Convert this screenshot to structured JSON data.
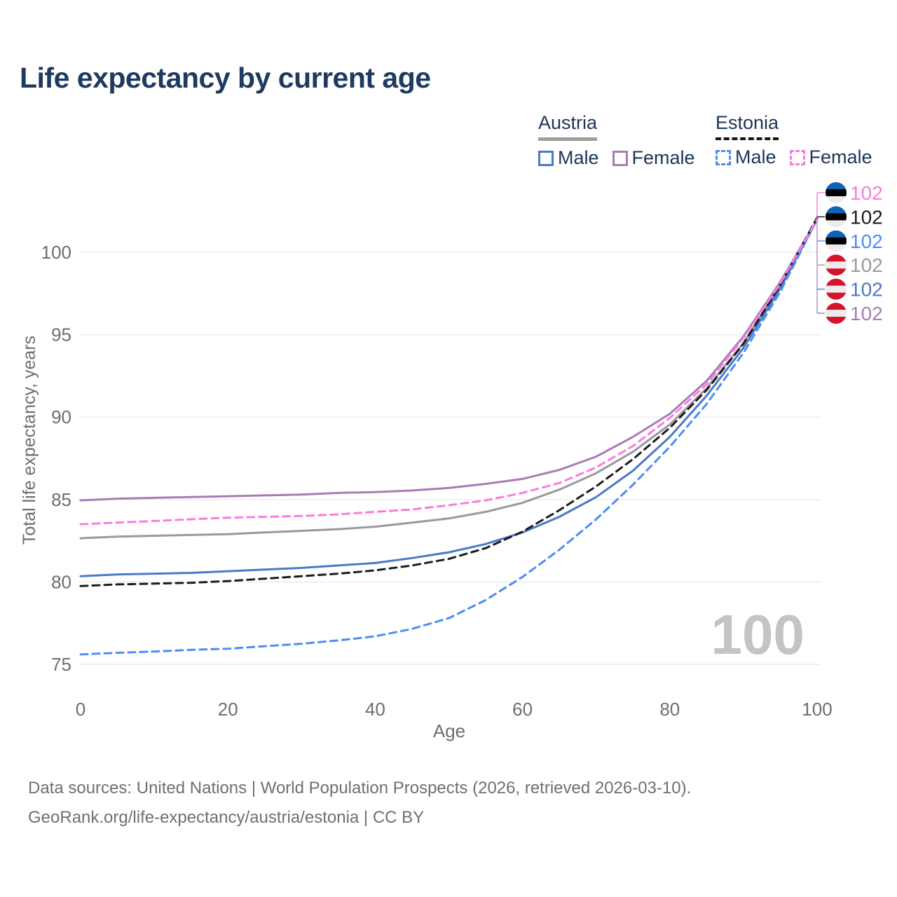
{
  "title": "Life expectancy by current age",
  "age_counter": "100",
  "legend": {
    "austria": {
      "label": "Austria",
      "male": "Male",
      "female": "Female"
    },
    "estonia": {
      "label": "Estonia",
      "male": "Male",
      "female": "Female"
    }
  },
  "axes": {
    "x": {
      "label": "Age",
      "ticks": [
        0,
        20,
        40,
        60,
        80,
        100
      ]
    },
    "y": {
      "label": "Total life expectancy, years",
      "ticks": [
        75,
        80,
        85,
        90,
        95,
        100
      ]
    }
  },
  "footer": {
    "line1": "Data sources: United Nations | World Population Prospects (2026, retrieved 2026-03-10).",
    "line2": "GeoRank.org/life-expectancy/austria/estonia | CC BY"
  },
  "colors": {
    "title_navy": "#1e3a5f",
    "tick_gray": "#6e6e6e",
    "grid": "#ebebeb",
    "austria_male": "#4b79c8",
    "austria_female": "#a97bb5",
    "austria_both": "#9a9a9a",
    "estonia_male": "#4d8df5",
    "estonia_female": "#fb7ae1",
    "estonia_both": "#1c1c1c",
    "counter_gray": "#c4c4c4",
    "leader_pink": "#fb7ae1",
    "leader_purple": "#b48cc0",
    "estonia_flag_stripes": [
      "#0d63b8",
      "#000000",
      "#ececec"
    ],
    "austria_flag_stripes": [
      "#d6132d",
      "#ececec",
      "#d6132d"
    ]
  },
  "chart_data": {
    "type": "line",
    "title": "Life expectancy by current age",
    "xlabel": "Age",
    "ylabel": "Total life expectancy, years",
    "xlim": [
      0,
      100
    ],
    "ylim": [
      74,
      103
    ],
    "grid": "horizontal",
    "legend_position": "top-right",
    "x": [
      0,
      5,
      10,
      15,
      20,
      25,
      30,
      35,
      40,
      45,
      50,
      55,
      60,
      65,
      70,
      75,
      80,
      85,
      90,
      95,
      100
    ],
    "series": [
      {
        "name": "Austria Both sexes",
        "key": "austria-both",
        "color": "#9a9a9a",
        "dash": null,
        "values": [
          82.65,
          82.75,
          82.8,
          82.85,
          82.9,
          83.0,
          83.1,
          83.2,
          83.35,
          83.6,
          83.85,
          84.25,
          84.8,
          85.6,
          86.6,
          87.9,
          89.55,
          91.75,
          94.5,
          98.0,
          102
        ]
      },
      {
        "name": "Austria Male",
        "key": "austria-male",
        "color": "#4b79c8",
        "dash": null,
        "values": [
          80.35,
          80.45,
          80.5,
          80.55,
          80.65,
          80.75,
          80.85,
          81.0,
          81.15,
          81.45,
          81.8,
          82.3,
          83.0,
          83.95,
          85.15,
          86.75,
          88.8,
          91.3,
          94.2,
          97.8,
          102
        ]
      },
      {
        "name": "Austria Female",
        "key": "austria-female",
        "color": "#a97bb5",
        "dash": null,
        "values": [
          84.95,
          85.05,
          85.1,
          85.15,
          85.2,
          85.25,
          85.3,
          85.4,
          85.45,
          85.55,
          85.7,
          85.95,
          86.25,
          86.8,
          87.6,
          88.8,
          90.2,
          92.2,
          94.9,
          98.2,
          102
        ]
      },
      {
        "name": "Estonia Male",
        "key": "estonia-male",
        "color": "#4d8df5",
        "dash": "10 7",
        "values": [
          75.6,
          75.7,
          75.78,
          75.88,
          75.95,
          76.1,
          76.25,
          76.45,
          76.7,
          77.15,
          77.8,
          78.9,
          80.3,
          81.95,
          83.8,
          85.9,
          88.2,
          90.8,
          93.9,
          97.6,
          102
        ]
      },
      {
        "name": "Estonia Both sexes",
        "key": "estonia-both",
        "color": "#1c1c1c",
        "dash": "10 7",
        "values": [
          79.75,
          79.85,
          79.9,
          79.95,
          80.05,
          80.2,
          80.35,
          80.5,
          80.7,
          81.0,
          81.4,
          82.05,
          83.05,
          84.35,
          85.8,
          87.45,
          89.35,
          91.65,
          94.45,
          98.0,
          102.1
        ]
      },
      {
        "name": "Estonia Female",
        "key": "estonia-female",
        "color": "#fb7ae1",
        "dash": "10 7",
        "values": [
          83.5,
          83.6,
          83.7,
          83.8,
          83.9,
          83.95,
          84.0,
          84.1,
          84.25,
          84.4,
          84.65,
          84.95,
          85.4,
          86.0,
          86.95,
          88.25,
          89.95,
          92.0,
          94.8,
          98.1,
          102
        ]
      }
    ],
    "end_labels": [
      {
        "series": "Estonia Female",
        "flag": "estonia",
        "label": "102",
        "color": "#fb7ae1"
      },
      {
        "series": "Estonia Both sexes",
        "flag": "estonia",
        "label": "102",
        "color": "#1c1c1c"
      },
      {
        "series": "Estonia Male",
        "flag": "estonia",
        "label": "102",
        "color": "#4d8df5"
      },
      {
        "series": "Austria Both sexes",
        "flag": "austria",
        "label": "102",
        "color": "#9a9a9a"
      },
      {
        "series": "Austria Male",
        "flag": "austria",
        "label": "102",
        "color": "#4b79c8"
      },
      {
        "series": "Austria Female",
        "flag": "austria",
        "label": "102",
        "color": "#a97bb5"
      }
    ]
  }
}
